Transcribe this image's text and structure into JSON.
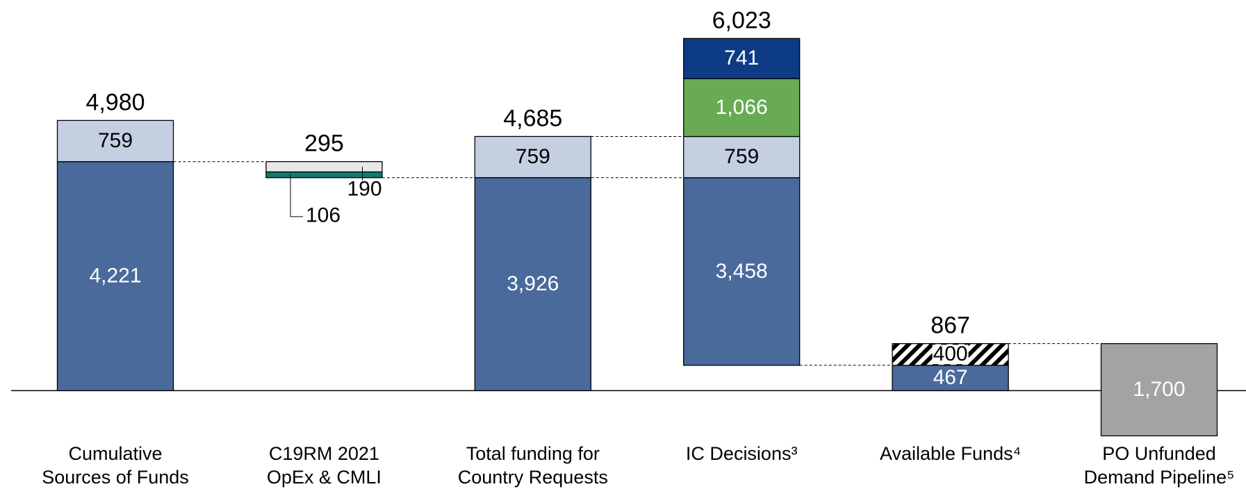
{
  "chart_data": {
    "type": "waterfall",
    "categories": [
      [
        "Cumulative",
        "Sources of Funds"
      ],
      [
        "C19RM 2021",
        "OpEx & CMLI"
      ],
      [
        "Total funding for",
        "Country Requests"
      ],
      [
        "IC Decisions³"
      ],
      [
        "Available Funds⁴"
      ],
      [
        "PO Unfunded",
        "Demand Pipeline⁵"
      ]
    ],
    "totals": [
      4980,
      295,
      4685,
      6023,
      867,
      null
    ],
    "total_labels": [
      "4,980",
      "295",
      "4,685",
      "6,023",
      "867",
      null
    ],
    "series": [
      {
        "color": "#4a6a9b",
        "label_color": "#ffffff",
        "values": [
          4221,
          null,
          3926,
          3458,
          467,
          null
        ],
        "value_labels": [
          "4,221",
          null,
          "3,926",
          "3,458",
          "467",
          null
        ]
      },
      {
        "color": "#c4cfe2",
        "label_color": "#000000",
        "values": [
          759,
          null,
          759,
          759,
          null,
          null
        ],
        "value_labels": [
          "759",
          null,
          "759",
          "759",
          null,
          null
        ]
      },
      {
        "color": "#69ab55",
        "label_color": "#ffffff",
        "values": [
          null,
          null,
          null,
          1066,
          null,
          null
        ],
        "value_labels": [
          null,
          null,
          null,
          "1,066",
          null,
          null
        ]
      },
      {
        "color": "#0d3c84",
        "label_color": "#ffffff",
        "values": [
          null,
          null,
          null,
          741,
          null,
          null
        ],
        "value_labels": [
          null,
          null,
          null,
          "741",
          null,
          null
        ]
      },
      {
        "color": "#e8e8e8",
        "label_color": "#000000",
        "values": [
          null,
          190,
          null,
          null,
          null,
          null
        ],
        "value_labels": [
          null,
          "190",
          null,
          null,
          null,
          null
        ]
      },
      {
        "color": "#127a6c",
        "label_color": "#000000",
        "values": [
          null,
          106,
          null,
          null,
          null,
          null
        ],
        "value_labels": [
          null,
          "106",
          null,
          null,
          null,
          null
        ]
      },
      {
        "color": "#000000",
        "hatch": true,
        "label_color": "#000000",
        "values": [
          null,
          null,
          null,
          null,
          400,
          null
        ],
        "value_labels": [
          null,
          null,
          null,
          null,
          "400",
          null
        ]
      },
      {
        "color": "#a3a3a3",
        "label_color": "#ffffff",
        "values": [
          null,
          null,
          null,
          null,
          null,
          1700
        ],
        "value_labels": [
          null,
          null,
          null,
          null,
          null,
          "1,700"
        ]
      }
    ],
    "ylim": [
      -1800,
      7200
    ]
  }
}
